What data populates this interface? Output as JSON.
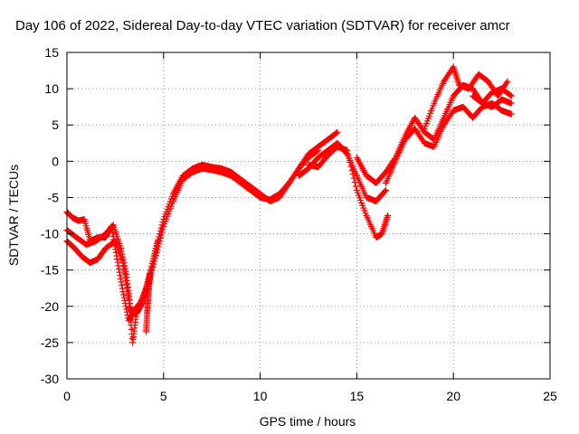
{
  "chart_data": {
    "type": "scatter",
    "title": "Day 106 of 2022, Sidereal Day-to-day VTEC variation (SDTVAR) for receiver amcr",
    "xlabel": "GPS time / hours",
    "ylabel": "SDTVAR / TECUs",
    "xlim": [
      0,
      25
    ],
    "ylim": [
      -30,
      15
    ],
    "x_ticks": [
      "0",
      "5",
      "10",
      "15",
      "20",
      "25"
    ],
    "y_ticks": [
      "-30",
      "-25",
      "-20",
      "-15",
      "-10",
      "-5",
      "0",
      "5",
      "10",
      "15"
    ],
    "grid": true,
    "legend": "none",
    "marker": "plus",
    "color": "#ff0000",
    "series": [
      {
        "x": [
          0.0,
          0.5,
          1.0,
          1.5,
          2.0,
          2.4,
          2.8,
          3.1,
          3.3,
          3.5,
          3.7,
          4.0,
          4.3,
          4.6,
          5.0,
          5.5,
          6.0,
          6.5,
          7.0,
          7.5,
          8.0,
          8.5,
          9.0,
          9.5,
          10.0,
          10.5,
          11.0,
          11.5,
          12.0,
          12.5,
          13.0
        ],
        "y": [
          -9.5,
          -10.5,
          -11.5,
          -11.0,
          -10.0,
          -8.8,
          -12.0,
          -16.0,
          -20.5,
          -21.0,
          -20.5,
          -18.5,
          -15.5,
          -12.0,
          -8.0,
          -4.5,
          -2.0,
          -1.0,
          -0.5,
          -0.8,
          -1.0,
          -1.5,
          -2.5,
          -3.5,
          -4.5,
          -5.5,
          -5.0,
          -3.0,
          -1.0,
          0.5,
          1.5
        ]
      },
      {
        "x": [
          0.0,
          0.4,
          0.8,
          1.2,
          1.6,
          2.0,
          2.5,
          2.9,
          3.2,
          3.4,
          3.6,
          3.9,
          4.2,
          4.6,
          5.0,
          5.5,
          6.0,
          6.5,
          7.0,
          7.5,
          8.0,
          8.5,
          9.0,
          9.5,
          10.0,
          10.5,
          11.0,
          11.5,
          12.0,
          12.5,
          13.0,
          13.5,
          14.0
        ],
        "y": [
          -11.0,
          -12.0,
          -13.2,
          -14.0,
          -13.5,
          -12.0,
          -11.0,
          -14.0,
          -19.0,
          -25.0,
          -21.0,
          -19.5,
          -17.0,
          -13.0,
          -9.0,
          -5.5,
          -2.5,
          -1.5,
          -1.0,
          -1.2,
          -1.5,
          -2.0,
          -3.0,
          -4.0,
          -5.0,
          -5.3,
          -4.5,
          -3.0,
          -1.0,
          1.0,
          2.0,
          3.0,
          4.0
        ]
      },
      {
        "x": [
          0.0,
          0.3,
          0.6,
          0.9,
          1.2,
          1.6,
          2.0,
          2.3,
          2.6,
          2.9,
          3.2,
          3.5,
          3.8,
          4.1,
          4.4,
          4.7
        ],
        "y": [
          -7.0,
          -7.8,
          -8.2,
          -8.0,
          -11.0,
          -10.5,
          -10.5,
          -9.0,
          -13.5,
          -18.0,
          -22.0,
          -20.5,
          -19.5,
          -17.5,
          -14.5,
          -11.0
        ]
      },
      {
        "x": [
          4.1,
          4.15,
          4.2,
          4.25,
          4.3
        ],
        "y": [
          -23.5,
          -21.0,
          -19.0,
          -17.0,
          -15.5
        ]
      },
      {
        "x": [
          12.5,
          13.0,
          13.5,
          14.0,
          14.5,
          15.0,
          15.5,
          16.0,
          16.3,
          16.6
        ],
        "y": [
          -0.5,
          -0.8,
          0.8,
          2.0,
          1.5,
          -4.0,
          -7.5,
          -10.5,
          -10.0,
          -7.5
        ]
      },
      {
        "x": [
          12.0,
          12.5,
          13.0,
          13.5,
          14.0,
          14.5,
          15.0,
          15.5,
          16.0,
          16.5
        ],
        "y": [
          -2.0,
          -1.0,
          0.5,
          1.5,
          2.5,
          1.0,
          -2.0,
          -5.0,
          -5.5,
          -4.0
        ]
      },
      {
        "x": [
          15.0,
          15.5,
          16.0,
          16.5,
          17.0,
          17.5,
          18.0,
          18.5,
          19.0,
          19.5,
          20.0,
          20.5,
          21.0,
          21.5,
          22.0,
          22.5,
          23.0
        ],
        "y": [
          0.5,
          -2.0,
          -3.0,
          -1.5,
          0.5,
          3.5,
          6.0,
          4.0,
          3.0,
          6.0,
          9.0,
          10.5,
          10.0,
          8.0,
          9.5,
          10.0,
          9.0
        ]
      },
      {
        "x": [
          16.5,
          17.0,
          17.5,
          18.0,
          18.5,
          19.0,
          19.5,
          20.0,
          20.5,
          21.0,
          21.5,
          22.0,
          22.5,
          23.0
        ],
        "y": [
          -3.0,
          0.0,
          3.0,
          4.5,
          2.5,
          2.0,
          5.0,
          7.0,
          7.5,
          6.0,
          7.5,
          8.0,
          7.0,
          6.5
        ]
      },
      {
        "x": [
          18.5,
          19.0,
          19.5,
          20.0,
          20.3,
          20.8,
          21.3,
          21.8,
          22.3,
          22.8
        ],
        "y": [
          4.5,
          8.0,
          11.0,
          13.0,
          10.5,
          10.0,
          12.0,
          11.0,
          9.0,
          11.0
        ]
      },
      {
        "x": [
          21.0,
          21.5,
          22.0,
          22.5,
          23.0
        ],
        "y": [
          9.0,
          8.0,
          7.5,
          8.5,
          8.0
        ]
      }
    ]
  }
}
